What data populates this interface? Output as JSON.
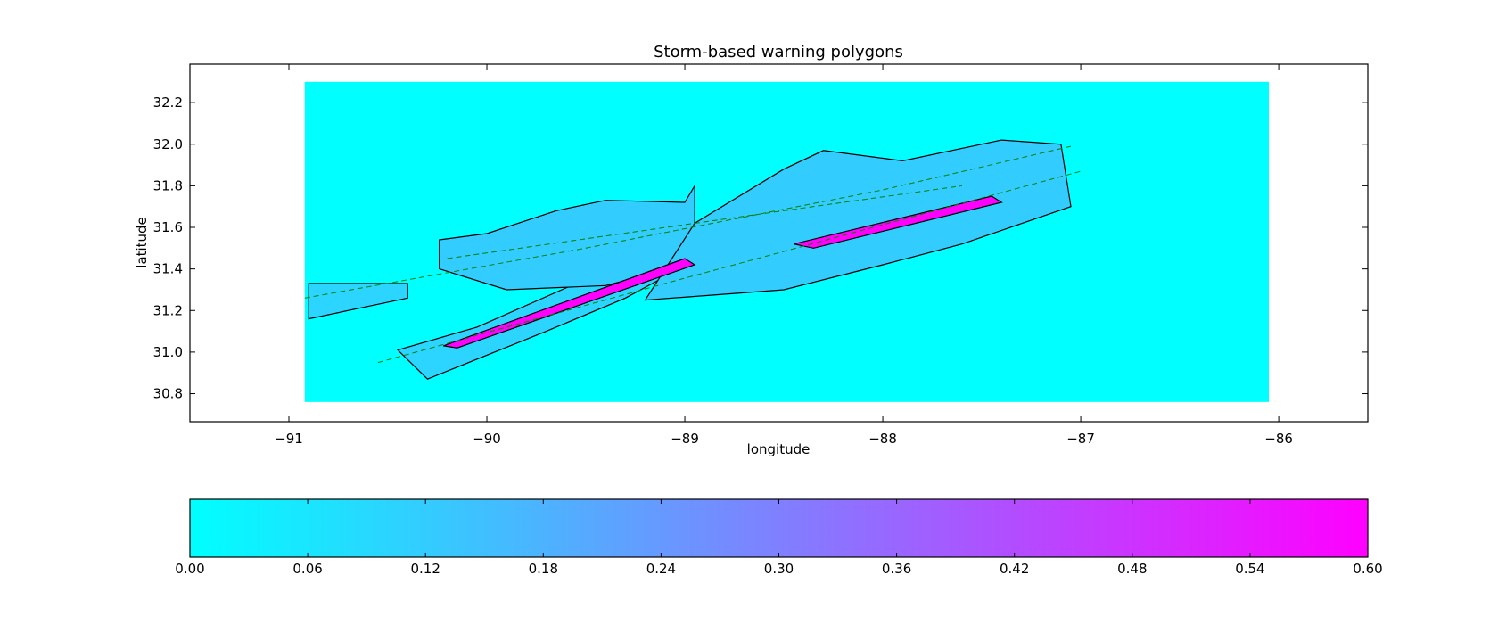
{
  "chart_data": {
    "type": "heatmap",
    "title": "Storm-based warning polygons",
    "xlabel": "longitude",
    "ylabel": "latitude",
    "xlim": [
      -91.5,
      -85.55
    ],
    "ylim": [
      30.665,
      32.385
    ],
    "xticks": [
      -91,
      -90,
      -89,
      -88,
      -87,
      -86
    ],
    "yticks": [
      30.8,
      31.0,
      31.2,
      31.4,
      31.6,
      31.8,
      32.0,
      32.2
    ],
    "xtick_labels": [
      "−91",
      "−90",
      "−89",
      "−88",
      "−87",
      "−86"
    ],
    "ytick_labels": [
      "30.8",
      "31.0",
      "31.2",
      "31.4",
      "31.6",
      "31.8",
      "32.0",
      "32.2"
    ],
    "data_extent": {
      "lon": [
        -90.92,
        -86.05
      ],
      "lat": [
        30.76,
        32.3
      ]
    },
    "colormap": {
      "name": "cool",
      "low": "#00ffff",
      "high": "#ff00ff"
    },
    "colorbar": {
      "range": [
        0.0,
        0.6
      ],
      "ticks": [
        0.0,
        0.06,
        0.12,
        0.18,
        0.24,
        0.3,
        0.36,
        0.42,
        0.48,
        0.54,
        0.6
      ],
      "tick_labels": [
        "0.00",
        "0.06",
        "0.12",
        "0.18",
        "0.24",
        "0.30",
        "0.36",
        "0.42",
        "0.48",
        "0.54",
        "0.60"
      ],
      "orientation": "horizontal"
    },
    "regions": [
      {
        "value": 0.1,
        "lonlat": [
          [
            -90.9,
            31.33
          ],
          [
            -90.4,
            31.33
          ],
          [
            -90.4,
            31.26
          ],
          [
            -90.9,
            31.16
          ]
        ]
      },
      {
        "value": 0.1,
        "lonlat": [
          [
            -90.45,
            31.01
          ],
          [
            -90.05,
            31.12
          ],
          [
            -89.55,
            31.33
          ],
          [
            -89.25,
            31.38
          ],
          [
            -88.95,
            31.44
          ],
          [
            -89.3,
            31.26
          ],
          [
            -89.7,
            31.1
          ],
          [
            -90.3,
            30.87
          ]
        ]
      },
      {
        "value": 0.12,
        "lonlat": [
          [
            -90.24,
            31.54
          ],
          [
            -90.0,
            31.57
          ],
          [
            -89.65,
            31.68
          ],
          [
            -89.4,
            31.73
          ],
          [
            -89.0,
            31.72
          ],
          [
            -88.95,
            31.8
          ],
          [
            -88.95,
            31.43
          ],
          [
            -89.4,
            31.32
          ],
          [
            -89.9,
            31.3
          ],
          [
            -90.24,
            31.4
          ]
        ]
      },
      {
        "value": 0.12,
        "lonlat": [
          [
            -88.95,
            31.62
          ],
          [
            -88.5,
            31.88
          ],
          [
            -88.3,
            31.97
          ],
          [
            -87.9,
            31.92
          ],
          [
            -87.4,
            32.02
          ],
          [
            -87.1,
            32.0
          ],
          [
            -87.05,
            31.7
          ],
          [
            -87.6,
            31.52
          ],
          [
            -88.0,
            31.42
          ],
          [
            -88.5,
            31.3
          ],
          [
            -89.2,
            31.25
          ]
        ]
      },
      {
        "value": 0.6,
        "lonlat": [
          [
            -90.22,
            31.03
          ],
          [
            -89.0,
            31.45
          ],
          [
            -88.95,
            31.42
          ],
          [
            -90.15,
            31.02
          ]
        ]
      },
      {
        "value": 0.6,
        "lonlat": [
          [
            -88.45,
            31.52
          ],
          [
            -87.45,
            31.75
          ],
          [
            -87.4,
            31.72
          ],
          [
            -88.35,
            31.5
          ]
        ]
      }
    ],
    "centerlines": [
      {
        "lonlat": [
          [
            -90.92,
            31.26
          ],
          [
            -89.5,
            31.5
          ],
          [
            -88.0,
            31.78
          ],
          [
            -87.05,
            31.99
          ]
        ]
      },
      {
        "lonlat": [
          [
            -90.2,
            31.45
          ],
          [
            -88.8,
            31.64
          ],
          [
            -87.6,
            31.8
          ]
        ]
      },
      {
        "lonlat": [
          [
            -90.55,
            30.95
          ],
          [
            -89.1,
            31.33
          ],
          [
            -87.0,
            31.87
          ]
        ]
      }
    ]
  },
  "colors": {
    "background": "#00ffff",
    "centerline": "#008000",
    "contour": "#000000"
  }
}
